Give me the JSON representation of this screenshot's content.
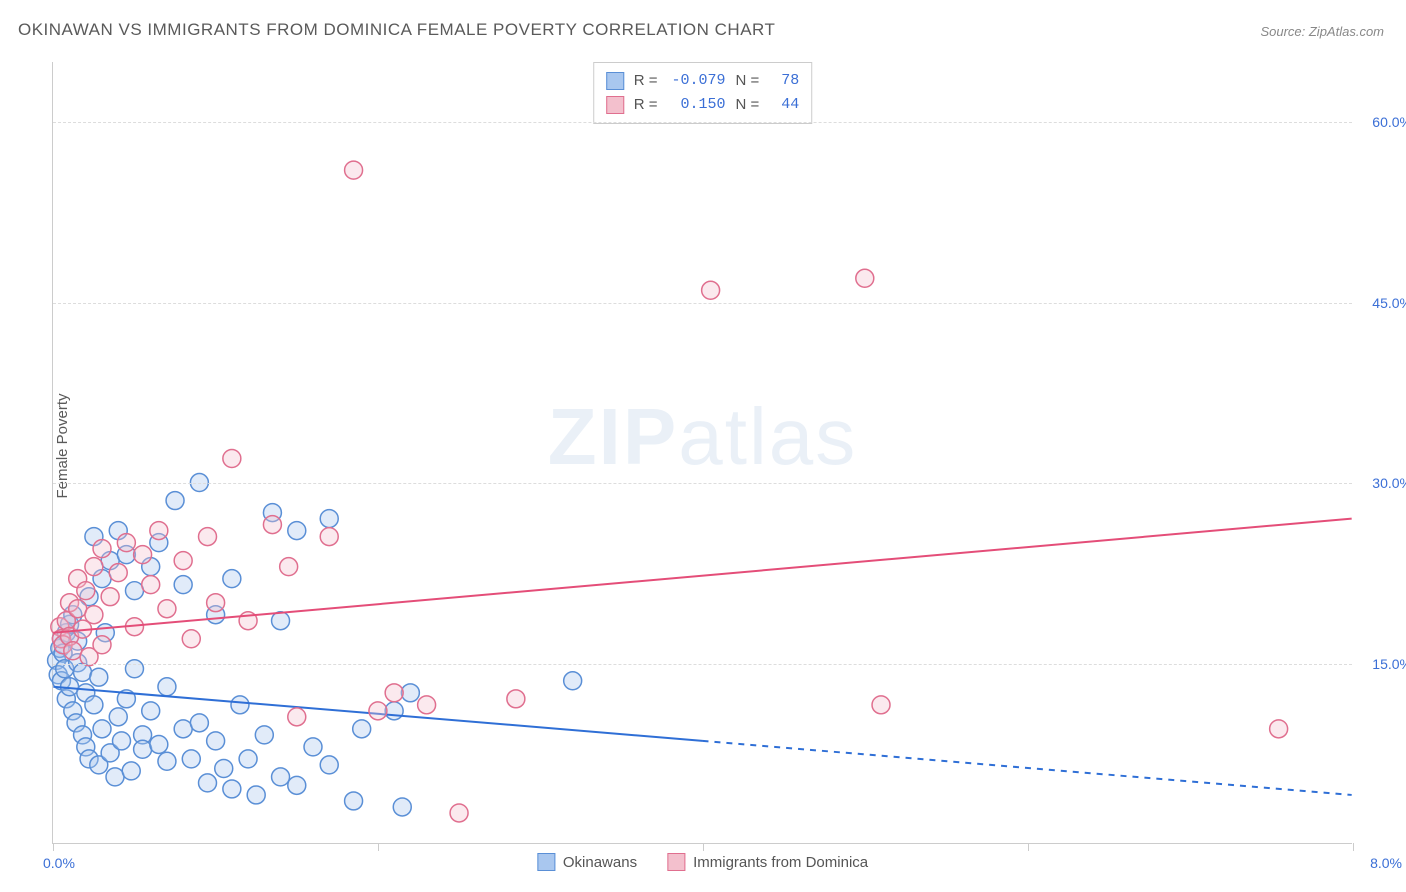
{
  "title": "OKINAWAN VS IMMIGRANTS FROM DOMINICA FEMALE POVERTY CORRELATION CHART",
  "source": "Source: ZipAtlas.com",
  "ylabel": "Female Poverty",
  "watermark_zip": "ZIP",
  "watermark_atlas": "atlas",
  "chart": {
    "type": "scatter",
    "background_color": "#ffffff",
    "grid_color": "#dddddd",
    "axis_color": "#cccccc",
    "xlim": [
      0.0,
      8.0
    ],
    "ylim": [
      0.0,
      65.0
    ],
    "yticks": [
      15.0,
      30.0,
      45.0,
      60.0
    ],
    "ytick_labels": [
      "15.0%",
      "30.0%",
      "45.0%",
      "60.0%"
    ],
    "xticks": [
      0.0,
      2.0,
      4.0,
      6.0,
      8.0
    ],
    "x_left_label": "0.0%",
    "x_right_label": "8.0%",
    "ytick_label_color": "#3b6fd6",
    "xtick_label_color": "#3b6fd6",
    "label_fontsize": 15,
    "title_fontsize": 17,
    "marker_radius": 9,
    "marker_fill_opacity": 0.35,
    "marker_stroke_width": 1.5,
    "series": [
      {
        "name": "Okinawans",
        "color_fill": "#a9c7ef",
        "color_stroke": "#5a8fd6",
        "r_value": "-0.079",
        "n_value": "78",
        "trend": {
          "x1": 0.0,
          "y1": 13.0,
          "x2": 8.0,
          "y2": 4.0,
          "solid_until_x": 4.0,
          "color": "#2f6fd6",
          "width": 2,
          "dash": "6,6"
        },
        "points": [
          [
            0.02,
            15.2
          ],
          [
            0.03,
            14.0
          ],
          [
            0.04,
            16.2
          ],
          [
            0.05,
            17.0
          ],
          [
            0.05,
            13.5
          ],
          [
            0.06,
            15.8
          ],
          [
            0.07,
            14.5
          ],
          [
            0.08,
            12.0
          ],
          [
            0.08,
            17.5
          ],
          [
            0.1,
            18.2
          ],
          [
            0.1,
            13.0
          ],
          [
            0.12,
            11.0
          ],
          [
            0.12,
            19.0
          ],
          [
            0.14,
            10.0
          ],
          [
            0.15,
            15.0
          ],
          [
            0.15,
            16.8
          ],
          [
            0.18,
            9.0
          ],
          [
            0.18,
            14.2
          ],
          [
            0.2,
            12.5
          ],
          [
            0.2,
            8.0
          ],
          [
            0.22,
            7.0
          ],
          [
            0.22,
            20.5
          ],
          [
            0.25,
            11.5
          ],
          [
            0.25,
            25.5
          ],
          [
            0.28,
            6.5
          ],
          [
            0.28,
            13.8
          ],
          [
            0.3,
            22.0
          ],
          [
            0.3,
            9.5
          ],
          [
            0.32,
            17.5
          ],
          [
            0.35,
            7.5
          ],
          [
            0.35,
            23.5
          ],
          [
            0.38,
            5.5
          ],
          [
            0.4,
            26.0
          ],
          [
            0.4,
            10.5
          ],
          [
            0.42,
            8.5
          ],
          [
            0.45,
            12.0
          ],
          [
            0.45,
            24.0
          ],
          [
            0.48,
            6.0
          ],
          [
            0.5,
            14.5
          ],
          [
            0.5,
            21.0
          ],
          [
            0.55,
            9.0
          ],
          [
            0.55,
            7.8
          ],
          [
            0.6,
            11.0
          ],
          [
            0.6,
            23.0
          ],
          [
            0.65,
            8.2
          ],
          [
            0.65,
            25.0
          ],
          [
            0.7,
            6.8
          ],
          [
            0.7,
            13.0
          ],
          [
            0.75,
            28.5
          ],
          [
            0.8,
            9.5
          ],
          [
            0.8,
            21.5
          ],
          [
            0.85,
            7.0
          ],
          [
            0.9,
            30.0
          ],
          [
            0.9,
            10.0
          ],
          [
            0.95,
            5.0
          ],
          [
            1.0,
            19.0
          ],
          [
            1.0,
            8.5
          ],
          [
            1.05,
            6.2
          ],
          [
            1.1,
            4.5
          ],
          [
            1.1,
            22.0
          ],
          [
            1.15,
            11.5
          ],
          [
            1.2,
            7.0
          ],
          [
            1.25,
            4.0
          ],
          [
            1.3,
            9.0
          ],
          [
            1.35,
            27.5
          ],
          [
            1.4,
            18.5
          ],
          [
            1.4,
            5.5
          ],
          [
            1.5,
            26.0
          ],
          [
            1.5,
            4.8
          ],
          [
            1.6,
            8.0
          ],
          [
            1.7,
            6.5
          ],
          [
            1.7,
            27.0
          ],
          [
            1.85,
            3.5
          ],
          [
            1.9,
            9.5
          ],
          [
            2.1,
            11.0
          ],
          [
            2.15,
            3.0
          ],
          [
            2.2,
            12.5
          ],
          [
            3.2,
            13.5
          ]
        ]
      },
      {
        "name": "Immigrants from Dominica",
        "color_fill": "#f3c0cd",
        "color_stroke": "#e06f8f",
        "r_value": "0.150",
        "n_value": "44",
        "trend": {
          "x1": 0.0,
          "y1": 17.5,
          "x2": 8.0,
          "y2": 27.0,
          "solid_until_x": 8.0,
          "color": "#e44d78",
          "width": 2,
          "dash": ""
        },
        "points": [
          [
            0.04,
            18.0
          ],
          [
            0.05,
            17.0
          ],
          [
            0.06,
            16.5
          ],
          [
            0.08,
            18.5
          ],
          [
            0.1,
            17.2
          ],
          [
            0.1,
            20.0
          ],
          [
            0.12,
            16.0
          ],
          [
            0.15,
            19.5
          ],
          [
            0.15,
            22.0
          ],
          [
            0.18,
            17.8
          ],
          [
            0.2,
            21.0
          ],
          [
            0.22,
            15.5
          ],
          [
            0.25,
            23.0
          ],
          [
            0.25,
            19.0
          ],
          [
            0.3,
            24.5
          ],
          [
            0.3,
            16.5
          ],
          [
            0.35,
            20.5
          ],
          [
            0.4,
            22.5
          ],
          [
            0.45,
            25.0
          ],
          [
            0.5,
            18.0
          ],
          [
            0.55,
            24.0
          ],
          [
            0.6,
            21.5
          ],
          [
            0.65,
            26.0
          ],
          [
            0.7,
            19.5
          ],
          [
            0.8,
            23.5
          ],
          [
            0.85,
            17.0
          ],
          [
            0.95,
            25.5
          ],
          [
            1.0,
            20.0
          ],
          [
            1.1,
            32.0
          ],
          [
            1.2,
            18.5
          ],
          [
            1.35,
            26.5
          ],
          [
            1.45,
            23.0
          ],
          [
            1.5,
            10.5
          ],
          [
            1.7,
            25.5
          ],
          [
            1.85,
            56.0
          ],
          [
            2.0,
            11.0
          ],
          [
            2.1,
            12.5
          ],
          [
            2.3,
            11.5
          ],
          [
            2.5,
            2.5
          ],
          [
            2.85,
            12.0
          ],
          [
            4.05,
            46.0
          ],
          [
            5.0,
            47.0
          ],
          [
            5.1,
            11.5
          ],
          [
            7.55,
            9.5
          ]
        ]
      }
    ]
  },
  "stats_box": {
    "r_label": "R =",
    "n_label": "N ="
  },
  "legend": {
    "series1": "Okinawans",
    "series2": "Immigrants from Dominica"
  }
}
